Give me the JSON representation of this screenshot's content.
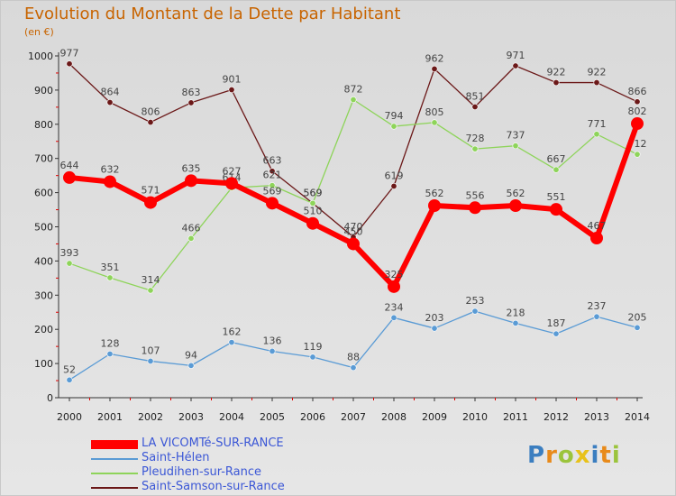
{
  "chart_data": {
    "type": "line",
    "title": "Evolution du Montant de la Dette par Habitant",
    "unit_label": "(en €)",
    "categories": [
      "2000",
      "2001",
      "2002",
      "2003",
      "2004",
      "2005",
      "2006",
      "2007",
      "2008",
      "2009",
      "2010",
      "2011",
      "2012",
      "2013",
      "2014"
    ],
    "ylim": [
      0,
      1000
    ],
    "yticks": [
      0,
      100,
      200,
      300,
      400,
      500,
      600,
      700,
      800,
      900,
      1000
    ],
    "grid": false,
    "legend_position": "bottom-left",
    "series": [
      {
        "name": "Saint-Samson-sur-Rance",
        "color": "#6b1818",
        "values": [
          977,
          864,
          806,
          863,
          901,
          663,
          569,
          470,
          619,
          962,
          851,
          971,
          922,
          922,
          866
        ]
      },
      {
        "name": "Pleudihen-sur-Rance",
        "color": "#8ed45a",
        "values": [
          393,
          351,
          314,
          466,
          614,
          621,
          569,
          872,
          794,
          805,
          728,
          737,
          667,
          771,
          712
        ]
      },
      {
        "name": "Saint-Hélen",
        "color": "#5a9bd5",
        "values": [
          52,
          128,
          107,
          94,
          162,
          136,
          119,
          88,
          234,
          203,
          253,
          218,
          187,
          237,
          205
        ]
      },
      {
        "name": "LA VICOMTé-SUR-RANCE",
        "color": "#ff0000",
        "values": [
          644,
          632,
          571,
          635,
          627,
          569,
          510,
          450,
          325,
          562,
          556,
          562,
          551,
          467,
          802
        ]
      }
    ]
  },
  "legend": [
    {
      "label": "LA VICOMTé-SUR-RANCE",
      "color": "#ff0000",
      "thick": true
    },
    {
      "label": "Saint-Hélen",
      "color": "#5a9bd5",
      "thick": false
    },
    {
      "label": "Pleudihen-sur-Rance",
      "color": "#8ed45a",
      "thick": false
    },
    {
      "label": "Saint-Samson-sur-Rance",
      "color": "#6b1818",
      "thick": false
    }
  ],
  "logo": {
    "letters": [
      "P",
      "r",
      "o",
      "x",
      "i",
      "t",
      "i"
    ],
    "colors": [
      "#3b7ec0",
      "#e88a1a",
      "#9bc43c",
      "#e8c21a",
      "#3b7ec0",
      "#e88a1a",
      "#9bc43c"
    ]
  }
}
